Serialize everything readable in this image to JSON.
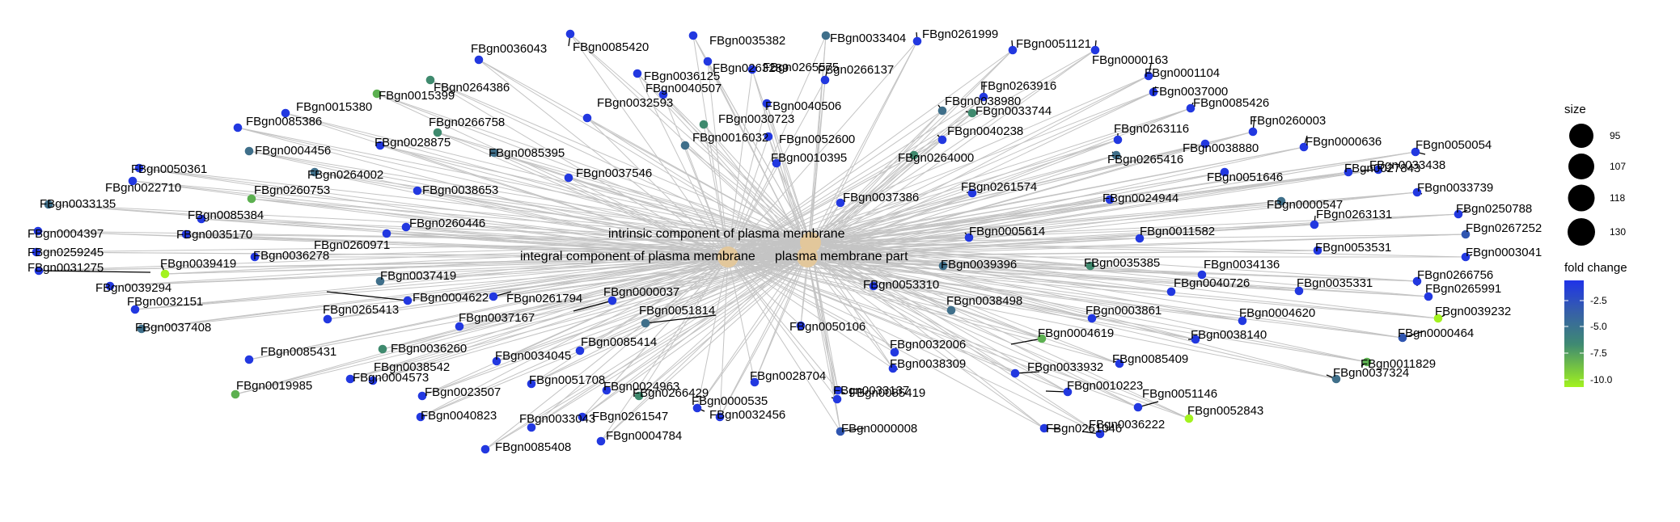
{
  "legend": {
    "size_title": "size",
    "size_values": [
      "95",
      "107",
      "118",
      "130"
    ],
    "fold_title": "fold change",
    "fold_ticks": [
      "-2.5",
      "-5.0",
      "-7.5",
      "-10.0"
    ],
    "gradient_colors": [
      "#1f33e8",
      "#3660a8",
      "#3f8a72",
      "#7ccc3c",
      "#a3f21f"
    ]
  },
  "colors": {
    "term_node": "#e2c79b",
    "edge": "#c4c4c4",
    "strong": "#2238e0",
    "mid_blue": "#2f55b0",
    "slate": "#3f6f8a",
    "teal": "#3f8a6e",
    "green": "#5cb050",
    "lime": "#a3f21f"
  },
  "terms": [
    {
      "name": "intrinsic component of plasma membrane"
    },
    {
      "name": "integral component of plasma membrane"
    },
    {
      "name": "plasma membrane part"
    }
  ],
  "genes": [
    {
      "id": "FBgn0085420",
      "c": "strong"
    },
    {
      "id": "FBgn0035382",
      "c": "strong"
    },
    {
      "id": "FBgn0033404",
      "c": "slate"
    },
    {
      "id": "FBgn0261999",
      "c": "strong"
    },
    {
      "id": "FBgn0051121",
      "c": "strong"
    },
    {
      "id": "FBgn0000163",
      "c": "strong"
    },
    {
      "id": "FBgn0001104",
      "c": "strong"
    },
    {
      "id": "FBgn0036043",
      "c": "strong"
    },
    {
      "id": "FBgn0263289",
      "c": "strong"
    },
    {
      "id": "FBgn0264386",
      "c": "teal"
    },
    {
      "id": "FBgn0036125",
      "c": "strong"
    },
    {
      "id": "FBgn0265575",
      "c": "strong"
    },
    {
      "id": "FBgn0266137",
      "c": "strong"
    },
    {
      "id": "FBgn0015399",
      "c": "green"
    },
    {
      "id": "FBgn0040507",
      "c": "strong"
    },
    {
      "id": "FBgn0263916",
      "c": "strong"
    },
    {
      "id": "FBgn0037000",
      "c": "strong"
    },
    {
      "id": "FBgn0015380",
      "c": "strong"
    },
    {
      "id": "FBgn0032593",
      "c": "strong"
    },
    {
      "id": "FBgn0040506",
      "c": "strong"
    },
    {
      "id": "FBgn0038980",
      "c": "slate"
    },
    {
      "id": "FBgn0033744",
      "c": "teal"
    },
    {
      "id": "FBgn0085426",
      "c": "strong"
    },
    {
      "id": "FBgn0085386",
      "c": "strong"
    },
    {
      "id": "FBgn0266758",
      "c": "teal"
    },
    {
      "id": "FBgn0030723",
      "c": "teal"
    },
    {
      "id": "FBgn0040238",
      "c": "strong"
    },
    {
      "id": "FBgn0263116",
      "c": "strong"
    },
    {
      "id": "FBgn0260003",
      "c": "strong"
    },
    {
      "id": "FBgn0052600",
      "c": "strong"
    },
    {
      "id": "FBgn0016032",
      "c": "slate"
    },
    {
      "id": "FBgn0000636",
      "c": "strong"
    },
    {
      "id": "FBgn0050054",
      "c": "strong"
    },
    {
      "id": "FBgn0004456",
      "c": "slate"
    },
    {
      "id": "FBgn0028875",
      "c": "strong"
    },
    {
      "id": "FBgn0085395",
      "c": "slate"
    },
    {
      "id": "FBgn0038880",
      "c": "strong"
    },
    {
      "id": "FBgn0010395",
      "c": "strong"
    },
    {
      "id": "FBgn0264000",
      "c": "teal"
    },
    {
      "id": "FBgn0265416",
      "c": "slate"
    },
    {
      "id": "FBgn0050361",
      "c": "strong"
    },
    {
      "id": "FBgn0264002",
      "c": "slate"
    },
    {
      "id": "FBgn0037546",
      "c": "strong"
    },
    {
      "id": "FBgn0033438",
      "c": "strong"
    },
    {
      "id": "FBgn0022710",
      "c": "strong"
    },
    {
      "id": "FBgn0038653",
      "c": "strong"
    },
    {
      "id": "FBgn0051646",
      "c": "strong"
    },
    {
      "id": "FBgn0027843",
      "c": "strong"
    },
    {
      "id": "FBgn0261574",
      "c": "strong"
    },
    {
      "id": "FBgn0260753",
      "c": "green"
    },
    {
      "id": "FBgn0033739",
      "c": "strong"
    },
    {
      "id": "FBgn0037386",
      "c": "strong"
    },
    {
      "id": "FBgn0024944",
      "c": "strong"
    },
    {
      "id": "FBgn0000547",
      "c": "slate"
    },
    {
      "id": "FBgn0033135",
      "c": "slate"
    },
    {
      "id": "FBgn0085384",
      "c": "strong"
    },
    {
      "id": "FBgn0250788",
      "c": "strong"
    },
    {
      "id": "FBgn0260446",
      "c": "strong"
    },
    {
      "id": "FBgn0263131",
      "c": "strong"
    },
    {
      "id": "FBgn0004397",
      "c": "strong"
    },
    {
      "id": "FBgn0035170",
      "c": "strong"
    },
    {
      "id": "FBgn0260971",
      "c": "strong"
    },
    {
      "id": "FBgn0005614",
      "c": "strong"
    },
    {
      "id": "FBgn0011582",
      "c": "strong"
    },
    {
      "id": "FBgn0267252",
      "c": "mid_blue"
    },
    {
      "id": "FBgn0259245",
      "c": "strong"
    },
    {
      "id": "FBgn0036278",
      "c": "strong"
    },
    {
      "id": "FBgn0053531",
      "c": "strong"
    },
    {
      "id": "FBgn0003041",
      "c": "strong"
    },
    {
      "id": "FBgn0039419",
      "c": "lime"
    },
    {
      "id": "FBgn0031275",
      "c": "strong"
    },
    {
      "id": "FBgn0039396",
      "c": "slate"
    },
    {
      "id": "FBgn0035385",
      "c": "teal"
    },
    {
      "id": "FBgn0034136",
      "c": "strong"
    },
    {
      "id": "FBgn0037419",
      "c": "slate"
    },
    {
      "id": "FBgn0266756",
      "c": "strong"
    },
    {
      "id": "FBgn0039294",
      "c": "strong"
    },
    {
      "id": "FBgn0053310",
      "c": "strong"
    },
    {
      "id": "FBgn0040726",
      "c": "strong"
    },
    {
      "id": "FBgn0035331",
      "c": "strong"
    },
    {
      "id": "FBgn0004622",
      "c": "strong"
    },
    {
      "id": "FBgn0261794",
      "c": "strong"
    },
    {
      "id": "FBgn0265991",
      "c": "strong"
    },
    {
      "id": "FBgn0000037",
      "c": "strong"
    },
    {
      "id": "FBgn0032151",
      "c": "strong"
    },
    {
      "id": "FBgn0038498",
      "c": "slate"
    },
    {
      "id": "FBgn0039232",
      "c": "lime"
    },
    {
      "id": "FBgn0265413",
      "c": "strong"
    },
    {
      "id": "FBgn0051814",
      "c": "slate"
    },
    {
      "id": "FBgn0003861",
      "c": "strong"
    },
    {
      "id": "FBgn0004620",
      "c": "strong"
    },
    {
      "id": "FBgn0037408",
      "c": "slate"
    },
    {
      "id": "FBgn0037167",
      "c": "strong"
    },
    {
      "id": "FBgn0050106",
      "c": "strong"
    },
    {
      "id": "FBgn0000464",
      "c": "mid_blue"
    },
    {
      "id": "FBgn0004619",
      "c": "green"
    },
    {
      "id": "FBgn0038140",
      "c": "strong"
    },
    {
      "id": "FBgn0036260",
      "c": "teal"
    },
    {
      "id": "FBgn0085414",
      "c": "strong"
    },
    {
      "id": "FBgn0032006",
      "c": "strong"
    },
    {
      "id": "FBgn0085431",
      "c": "strong"
    },
    {
      "id": "FBgn0085409",
      "c": "strong"
    },
    {
      "id": "FBgn0011829",
      "c": "green"
    },
    {
      "id": "FBgn0037324",
      "c": "slate"
    },
    {
      "id": "FBgn0034045",
      "c": "strong"
    },
    {
      "id": "FBgn0038309",
      "c": "strong"
    },
    {
      "id": "FBgn0038542",
      "c": "strong"
    },
    {
      "id": "FBgn0033932",
      "c": "strong"
    },
    {
      "id": "FBgn0019985",
      "c": "green"
    },
    {
      "id": "FBgn0266429",
      "c": "teal"
    },
    {
      "id": "FBgn0010223",
      "c": "strong"
    },
    {
      "id": "FBgn0028704",
      "c": "strong"
    },
    {
      "id": "FBgn0033137",
      "c": "strong"
    },
    {
      "id": "FBgn0051146",
      "c": "strong"
    },
    {
      "id": "FBgn0052843",
      "c": "lime"
    },
    {
      "id": "FBgn0004573",
      "c": "strong"
    },
    {
      "id": "FBgn0051708",
      "c": "strong"
    },
    {
      "id": "FBgn0023507",
      "c": "strong"
    },
    {
      "id": "FBgn0024963",
      "c": "strong"
    },
    {
      "id": "FBgn0000535",
      "c": "strong"
    },
    {
      "id": "FBgn0085419",
      "c": "strong"
    },
    {
      "id": "FBgn0040823",
      "c": "strong"
    },
    {
      "id": "FBgn0032456",
      "c": "strong"
    },
    {
      "id": "FBgn0261046",
      "c": "strong"
    },
    {
      "id": "FBgn0261547",
      "c": "strong"
    },
    {
      "id": "FBgn0036222",
      "c": "strong"
    },
    {
      "id": "FBgn0033043",
      "c": "strong"
    },
    {
      "id": "FBgn0000008",
      "c": "mid_blue"
    },
    {
      "id": "FBgn0004784",
      "c": "strong"
    },
    {
      "id": "FBgn0085408",
      "c": "strong"
    }
  ]
}
